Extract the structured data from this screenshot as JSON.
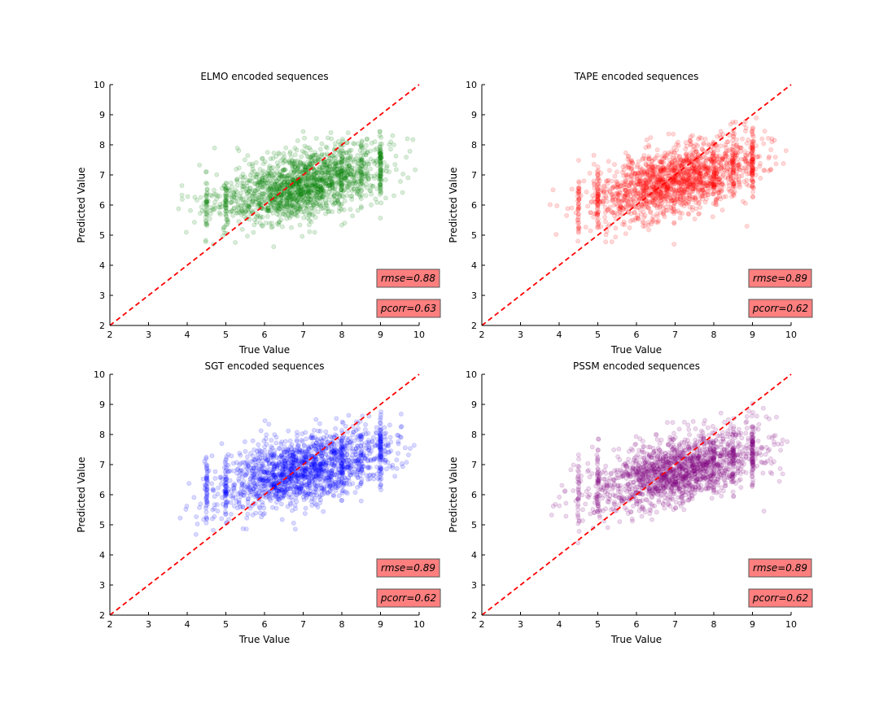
{
  "chart_data": [
    {
      "type": "scatter",
      "title": "ELMO encoded sequences",
      "xlabel": "True Value",
      "ylabel": "Predicted Value",
      "xlim": [
        2,
        10
      ],
      "ylim": [
        2,
        10
      ],
      "xticks": [
        "2",
        "3",
        "4",
        "5",
        "6",
        "7",
        "8",
        "9",
        "10"
      ],
      "yticks": [
        "2",
        "3",
        "4",
        "5",
        "6",
        "7",
        "8",
        "9",
        "10"
      ],
      "point_color": "#008000",
      "point_opacity": 0.15,
      "reference_line": {
        "from": [
          2,
          2
        ],
        "to": [
          10,
          10
        ],
        "color": "#ff0000",
        "style": "dashed"
      },
      "trend": {
        "intercept": 4.6,
        "slope": 0.3,
        "spread": 0.55,
        "n_points": 1800,
        "x_range": [
          3.7,
          9.9
        ],
        "x_peak": 7.0
      },
      "stats": [
        {
          "text": "rmse=0.88",
          "box_color": "#ff7f7f"
        },
        {
          "text": "pcorr=0.63",
          "box_color": "#ff7f7f"
        }
      ]
    },
    {
      "type": "scatter",
      "title": "TAPE encoded sequences",
      "xlabel": "True Value",
      "ylabel": "Predicted Value",
      "xlim": [
        2,
        10
      ],
      "ylim": [
        2,
        10
      ],
      "xticks": [
        "2",
        "3",
        "4",
        "5",
        "6",
        "7",
        "8",
        "9",
        "10"
      ],
      "yticks": [
        "2",
        "3",
        "4",
        "5",
        "6",
        "7",
        "8",
        "9",
        "10"
      ],
      "point_color": "#ff0000",
      "point_opacity": 0.15,
      "reference_line": {
        "from": [
          2,
          2
        ],
        "to": [
          10,
          10
        ],
        "color": "#ff0000",
        "style": "dashed"
      },
      "trend": {
        "intercept": 4.7,
        "slope": 0.3,
        "spread": 0.55,
        "n_points": 1800,
        "x_range": [
          3.7,
          9.9
        ],
        "x_peak": 7.0
      },
      "stats": [
        {
          "text": "rmse=0.89",
          "box_color": "#ff7f7f"
        },
        {
          "text": "pcorr=0.62",
          "box_color": "#ff7f7f"
        }
      ]
    },
    {
      "type": "scatter",
      "title": "SGT encoded sequences",
      "xlabel": "True Value",
      "ylabel": "Predicted Value",
      "xlim": [
        2,
        10
      ],
      "ylim": [
        2,
        10
      ],
      "xticks": [
        "2",
        "3",
        "4",
        "5",
        "6",
        "7",
        "8",
        "9",
        "10"
      ],
      "yticks": [
        "2",
        "3",
        "4",
        "5",
        "6",
        "7",
        "8",
        "9",
        "10"
      ],
      "point_color": "#0000ff",
      "point_opacity": 0.15,
      "reference_line": {
        "from": [
          2,
          2
        ],
        "to": [
          10,
          10
        ],
        "color": "#ff0000",
        "style": "dashed"
      },
      "trend": {
        "intercept": 4.7,
        "slope": 0.3,
        "spread": 0.55,
        "n_points": 1800,
        "x_range": [
          3.8,
          9.9
        ],
        "x_peak": 7.0
      },
      "stats": [
        {
          "text": "rmse=0.89",
          "box_color": "#ff7f7f"
        },
        {
          "text": "pcorr=0.62",
          "box_color": "#ff7f7f"
        }
      ]
    },
    {
      "type": "scatter",
      "title": "PSSM encoded sequences",
      "xlabel": "True Value",
      "ylabel": "Predicted Value",
      "xlim": [
        2,
        10
      ],
      "ylim": [
        2,
        10
      ],
      "xticks": [
        "2",
        "3",
        "4",
        "5",
        "6",
        "7",
        "8",
        "9",
        "10"
      ],
      "yticks": [
        "2",
        "3",
        "4",
        "5",
        "6",
        "7",
        "8",
        "9",
        "10"
      ],
      "point_color": "#800080",
      "point_opacity": 0.15,
      "reference_line": {
        "from": [
          2,
          2
        ],
        "to": [
          10,
          10
        ],
        "color": "#ff0000",
        "style": "dashed"
      },
      "trend": {
        "intercept": 4.7,
        "slope": 0.3,
        "spread": 0.55,
        "n_points": 1800,
        "x_range": [
          3.8,
          9.9
        ],
        "x_peak": 7.0
      },
      "stats": [
        {
          "text": "rmse=0.89",
          "box_color": "#ff7f7f"
        },
        {
          "text": "pcorr=0.62",
          "box_color": "#ff7f7f"
        }
      ]
    }
  ]
}
